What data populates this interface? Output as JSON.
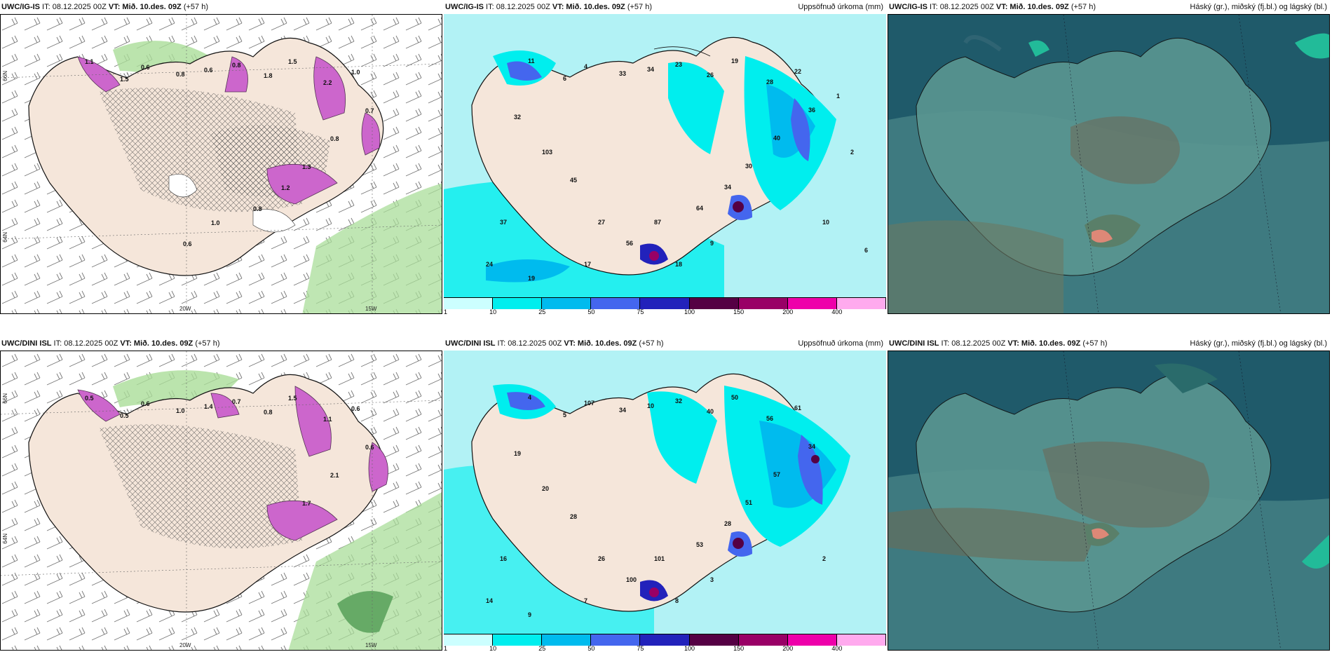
{
  "panels": {
    "p1": {
      "model": "UWC/IG-IS",
      "it": " IT: 08.12.2025 00Z ",
      "vt": "VT: Mið. 10.des. 09Z",
      "lead": " (+57 h)",
      "right": ""
    },
    "p2": {
      "model": "UWC/IG-IS",
      "it": " IT: 08.12.2025 00Z ",
      "vt": "VT: Mið. 10.des. 09Z",
      "lead": " (+57 h)",
      "right": "Uppsöfnuð úrkoma (mm)"
    },
    "p3": {
      "model": "UWC/IG-IS",
      "it": " IT: 08.12.2025 00Z ",
      "vt": "VT: Mið. 10.des. 09Z",
      "lead": " (+57 h)",
      "right": "Háský (gr.), miðský (fj.bl.) og lágský (bl.)"
    },
    "p4": {
      "model": "UWC/DINI ISL",
      "it": " IT: 08.12.2025 00Z ",
      "vt": "VT: Mið. 10.des. 09Z",
      "lead": " (+57 h)",
      "right": ""
    },
    "p5": {
      "model": "UWC/DINI ISL",
      "it": " IT: 08.12.2025 00Z ",
      "vt": "VT: Mið. 10.des. 09Z",
      "lead": " (+57 h)",
      "right": "Uppsöfnuð úrkoma (mm)"
    },
    "p6": {
      "model": "UWC/DINI ISL",
      "it": " IT: 08.12.2025 00Z ",
      "vt": "VT: Mið. 10.des. 09Z",
      "lead": " (+57 h)",
      "right": "Háský (gr.), miðský (fj.bl.) og lágský (bl.)"
    }
  },
  "axes": {
    "lat66": "66N",
    "lat64": "64N",
    "lon25": "25W",
    "lon20": "20W",
    "lon15": "15W",
    "lat65": "65N"
  },
  "precip_legend": {
    "ticks": [
      "1",
      "10",
      "25",
      "50",
      "75",
      "100",
      "150",
      "200",
      "400"
    ],
    "colors": [
      "#ccffff",
      "#00eeee",
      "#00bbee",
      "#4466ee",
      "#2222bb",
      "#550044",
      "#990066",
      "#ee00aa",
      "#ffaaee"
    ]
  },
  "colors": {
    "land": "#f5e6da",
    "sea_precip": "#b2f2f5",
    "cloud_dark": "#1f5a6a",
    "cloud_mid": "#4e8b8e",
    "snow_purple": "#cc66cc",
    "green": "#aadd99"
  },
  "p1_values": [
    "1.1",
    "1.5",
    "0.6",
    "0.8",
    "0.6",
    "0.8",
    "1.8",
    "1.5",
    "2.2",
    "1.0",
    "0.7",
    "0.8",
    "1.3",
    "1.2",
    "0.8",
    "1.0",
    "0.6"
  ],
  "p2_values": [
    "11",
    "6",
    "4",
    "33",
    "34",
    "23",
    "26",
    "19",
    "28",
    "22",
    "36",
    "40",
    "30",
    "34",
    "64",
    "87",
    "56",
    "27",
    "45",
    "103",
    "32",
    "37",
    "24",
    "19",
    "17",
    "18",
    "9",
    "10",
    "2",
    "1",
    "6"
  ],
  "p4_values": [
    "0.5",
    "0.5",
    "0.6",
    "1.0",
    "1.4",
    "0.7",
    "0.8",
    "1.5",
    "1.1",
    "0.6",
    "0.6",
    "2.1",
    "1.7"
  ],
  "p5_values": [
    "4",
    "5",
    "107",
    "34",
    "10",
    "32",
    "40",
    "50",
    "56",
    "61",
    "34",
    "57",
    "51",
    "28",
    "53",
    "101",
    "100",
    "26",
    "28",
    "20",
    "19",
    "16",
    "14",
    "9",
    "7",
    "8",
    "3",
    "2"
  ]
}
